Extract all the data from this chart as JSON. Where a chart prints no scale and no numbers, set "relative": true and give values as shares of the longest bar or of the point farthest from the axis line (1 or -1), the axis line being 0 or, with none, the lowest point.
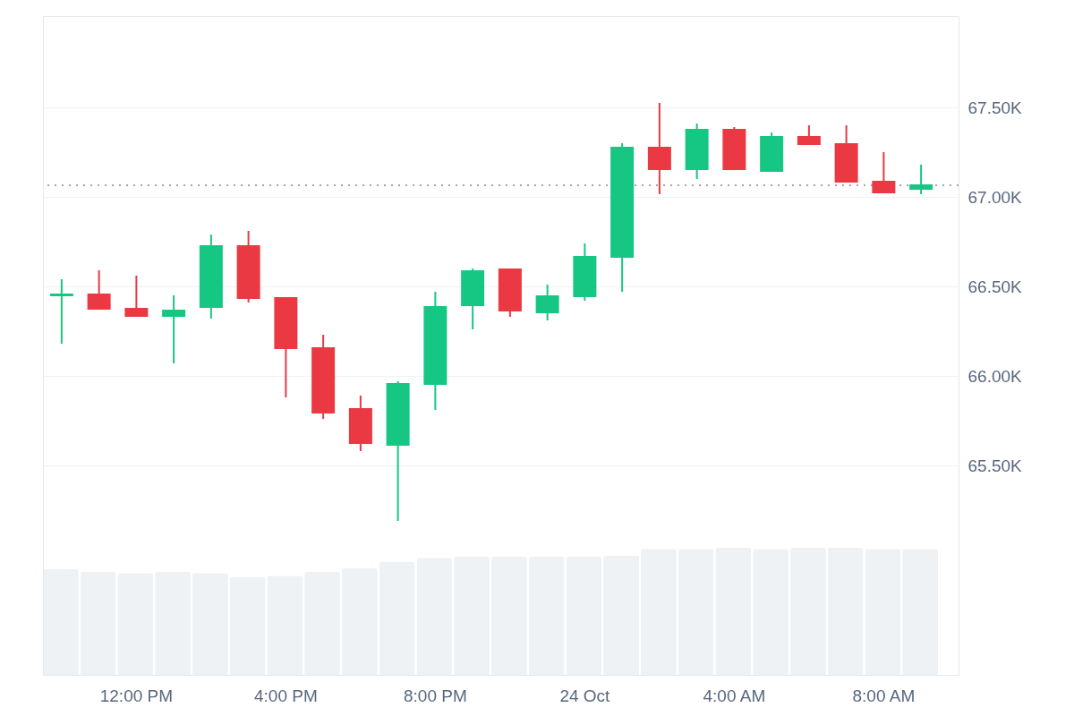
{
  "chart_data": [
    {
      "type": "candlestick",
      "categories": [
        null,
        null,
        "12:00 PM",
        null,
        null,
        null,
        "4:00 PM",
        null,
        null,
        null,
        "8:00 PM",
        null,
        null,
        null,
        "24 Oct",
        null,
        null,
        null,
        "4:00 AM",
        null,
        null,
        null,
        "8:00 AM",
        null
      ],
      "ohlc": [
        [
          66445,
          66540,
          66180,
          66460
        ],
        [
          66460,
          66590,
          66370,
          66370
        ],
        [
          66380,
          66560,
          66330,
          66330
        ],
        [
          66330,
          66450,
          66070,
          66370
        ],
        [
          66380,
          66790,
          66320,
          66730
        ],
        [
          66730,
          66810,
          66410,
          66430
        ],
        [
          66440,
          66440,
          65880,
          66150
        ],
        [
          66160,
          66230,
          65760,
          65790
        ],
        [
          65820,
          65890,
          65580,
          65620
        ],
        [
          65610,
          65970,
          65190,
          65960
        ],
        [
          65950,
          66470,
          65810,
          66390
        ],
        [
          66390,
          66600,
          66260,
          66590
        ],
        [
          66600,
          66600,
          66330,
          66360
        ],
        [
          66350,
          66510,
          66310,
          66450
        ],
        [
          66440,
          66740,
          66420,
          66670
        ],
        [
          66660,
          67300,
          66470,
          67280
        ],
        [
          67280,
          67525,
          67015,
          67150
        ],
        [
          67150,
          67410,
          67100,
          67380
        ],
        [
          67380,
          67390,
          67150,
          67150
        ],
        [
          67140,
          67360,
          67140,
          67340
        ],
        [
          67340,
          67400,
          67290,
          67290
        ],
        [
          67300,
          67400,
          67080,
          67080
        ],
        [
          67090,
          67250,
          67020,
          67020
        ],
        [
          67040,
          67180,
          67015,
          67070
        ]
      ],
      "colors": [
        "#16c784",
        "#ea3943",
        "#ea3943",
        "#16c784",
        "#16c784",
        "#ea3943",
        "#ea3943",
        "#ea3943",
        "#ea3943",
        "#16c784",
        "#16c784",
        "#16c784",
        "#ea3943",
        "#16c784",
        "#16c784",
        "#16c784",
        "#ea3943",
        "#16c784",
        "#ea3943",
        "#16c784",
        "#ea3943",
        "#ea3943",
        "#ea3943",
        "#16c784"
      ],
      "ylim": [
        64330,
        68010
      ],
      "yticks": [
        {
          "value": 65500,
          "label": "65.50K"
        },
        {
          "value": 66000,
          "label": "66.00K"
        },
        {
          "value": 66500,
          "label": "66.50K"
        },
        {
          "value": 67000,
          "label": "67.00K"
        },
        {
          "value": 67500,
          "label": "67.50K"
        }
      ],
      "grid": "y",
      "ref_lines": [
        {
          "axis": "y",
          "value": 67065,
          "line_style": "dotted",
          "color": "#888888"
        }
      ]
    },
    {
      "type": "bar",
      "relative": true,
      "color": "#eff2f5",
      "categories": [
        null,
        null,
        null,
        null,
        null,
        null,
        null,
        null,
        null,
        null,
        null,
        null,
        null,
        null,
        null,
        null,
        null,
        null,
        null,
        null,
        null,
        null,
        null,
        null
      ],
      "values": [
        0.83,
        0.81,
        0.8,
        0.81,
        0.8,
        0.77,
        0.78,
        0.81,
        0.84,
        0.89,
        0.92,
        0.93,
        0.93,
        0.93,
        0.93,
        0.94,
        0.99,
        0.99,
        1,
        0.99,
        1,
        1,
        0.99,
        0.99
      ]
    }
  ]
}
